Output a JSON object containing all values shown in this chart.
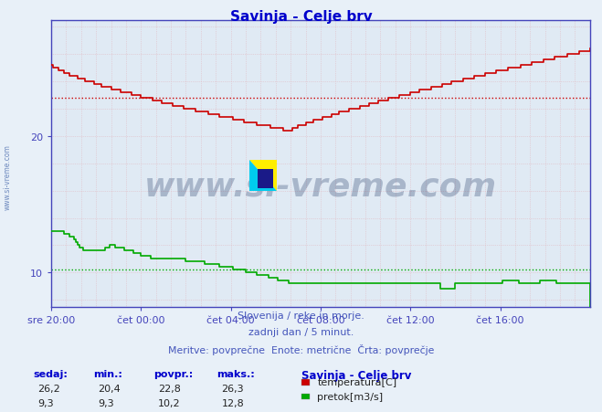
{
  "title": "Savinja - Celje brv",
  "title_color": "#0000cc",
  "bg_color": "#e8f0f8",
  "plot_bg_color": "#e0eaf4",
  "temp_color": "#cc0000",
  "flow_color": "#00aa00",
  "avg_temp": 22.8,
  "avg_flow": 10.2,
  "ymin": 7.5,
  "ymax": 28.5,
  "yticks": [
    10,
    20
  ],
  "watermark": "www.si-vreme.com",
  "watermark_color": "#1a3060",
  "watermark_alpha": 0.28,
  "subtitle1": "Slovenija / reke in morje.",
  "subtitle2": "zadnji dan / 5 minut.",
  "subtitle3": "Meritve: povprečne  Enote: metrične  Črta: povprečje",
  "legend_title": "Savinja - Celje brv",
  "legend_temp": "temperatura[C]",
  "legend_flow": "pretok[m3/s]",
  "xtick_labels": [
    "sre 20:00",
    "čet 00:00",
    "čet 04:00",
    "čet 08:00",
    "čet 12:00",
    "čet 16:00"
  ],
  "xtick_positions": [
    0,
    48,
    96,
    144,
    192,
    240
  ],
  "n_points": 289,
  "sidebar_text": "www.si-vreme.com",
  "table_headers": [
    "sedaj:",
    "min.:",
    "povpr.:",
    "maks.:"
  ],
  "table_temp": [
    "26,2",
    "20,4",
    "22,8",
    "26,3"
  ],
  "table_flow": [
    "9,3",
    "9,3",
    "10,2",
    "12,8"
  ],
  "grid_v_color": "#e0b8c0",
  "grid_h_color": "#e0b8c0",
  "axis_color": "#4444bb",
  "tick_color": "#4444bb"
}
